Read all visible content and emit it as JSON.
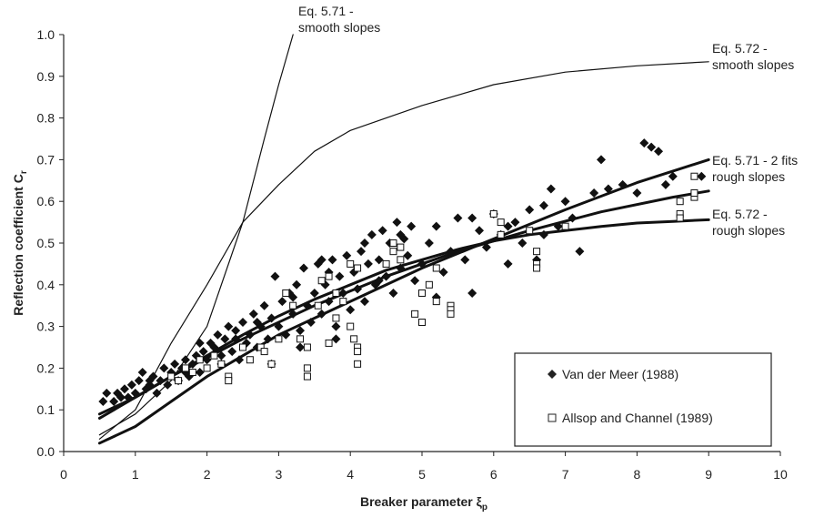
{
  "chart_data": {
    "type": "scatter",
    "xlabel": "Breaker parameter ξ",
    "xlabel_sub": "p",
    "ylabel": "Reflection coefficient C",
    "ylabel_sub": "r",
    "xlim": [
      0,
      10
    ],
    "ylim": [
      0,
      1.0
    ],
    "x_ticks": [
      "0",
      "1",
      "2",
      "3",
      "4",
      "5",
      "6",
      "7",
      "8",
      "9",
      "10"
    ],
    "y_ticks": [
      "0.0",
      "0.1",
      "0.2",
      "0.3",
      "0.4",
      "0.5",
      "0.6",
      "0.7",
      "0.8",
      "0.9",
      "1.0"
    ],
    "grid": false,
    "legend_position": "bottom-right",
    "legend": [
      {
        "name": "Van der Meer (1988)",
        "marker": "filled-diamond"
      },
      {
        "name": "Allsop and Channel (1989)",
        "marker": "open-square"
      }
    ],
    "annotations": [
      {
        "line1": "Eq. 5.71 -",
        "line2": "smooth slopes"
      },
      {
        "line1": "Eq. 5.72 -",
        "line2": "smooth slopes"
      },
      {
        "line1": "Eq. 5.71 - 2 fits",
        "line2": "rough slopes"
      },
      {
        "line1": "Eq. 5.72 -",
        "line2": "rough slopes"
      }
    ],
    "curves": [
      {
        "label": "Eq. 5.71 - smooth slopes",
        "style": "thin",
        "points": [
          [
            0.5,
            0.04
          ],
          [
            1.0,
            0.09
          ],
          [
            1.5,
            0.17
          ],
          [
            2.0,
            0.3
          ],
          [
            2.5,
            0.55
          ],
          [
            2.8,
            0.75
          ],
          [
            3.0,
            0.88
          ],
          [
            3.2,
            1.0
          ]
        ]
      },
      {
        "label": "Eq. 5.72 - smooth slopes",
        "style": "thin",
        "points": [
          [
            0.5,
            0.03
          ],
          [
            1.0,
            0.1
          ],
          [
            1.5,
            0.26
          ],
          [
            2.0,
            0.4
          ],
          [
            2.5,
            0.55
          ],
          [
            3.0,
            0.64
          ],
          [
            3.5,
            0.72
          ],
          [
            4.0,
            0.77
          ],
          [
            5.0,
            0.83
          ],
          [
            6.0,
            0.88
          ],
          [
            7.0,
            0.91
          ],
          [
            8.0,
            0.925
          ],
          [
            9.0,
            0.935
          ]
        ]
      },
      {
        "label": "Eq. 5.71 - rough slopes fit 1",
        "style": "thick",
        "points": [
          [
            0.5,
            0.08
          ],
          [
            1.5,
            0.18
          ],
          [
            2.5,
            0.27
          ],
          [
            3.5,
            0.35
          ],
          [
            4.5,
            0.42
          ],
          [
            5.5,
            0.48
          ],
          [
            6.5,
            0.53
          ],
          [
            7.5,
            0.575
          ],
          [
            8.5,
            0.61
          ],
          [
            9.0,
            0.625
          ]
        ]
      },
      {
        "label": "Eq. 5.71 - rough slopes fit 2",
        "style": "thick",
        "points": [
          [
            0.5,
            0.02
          ],
          [
            1.0,
            0.06
          ],
          [
            1.5,
            0.12
          ],
          [
            2.0,
            0.18
          ],
          [
            3.0,
            0.28
          ],
          [
            4.0,
            0.36
          ],
          [
            5.0,
            0.44
          ],
          [
            6.0,
            0.51
          ],
          [
            7.0,
            0.58
          ],
          [
            8.0,
            0.645
          ],
          [
            9.0,
            0.7
          ]
        ]
      },
      {
        "label": "Eq. 5.72 - rough slopes",
        "style": "thick",
        "points": [
          [
            0.5,
            0.09
          ],
          [
            1.0,
            0.13
          ],
          [
            1.5,
            0.18
          ],
          [
            2.0,
            0.23
          ],
          [
            2.5,
            0.28
          ],
          [
            3.0,
            0.325
          ],
          [
            3.5,
            0.365
          ],
          [
            4.0,
            0.4
          ],
          [
            4.5,
            0.435
          ],
          [
            5.0,
            0.46
          ],
          [
            5.5,
            0.485
          ],
          [
            6.0,
            0.505
          ],
          [
            6.5,
            0.52
          ],
          [
            7.0,
            0.53
          ],
          [
            7.5,
            0.54
          ],
          [
            8.0,
            0.548
          ],
          [
            8.5,
            0.552
          ],
          [
            9.0,
            0.556
          ]
        ]
      }
    ],
    "series": [
      {
        "name": "Van der Meer (1988)",
        "marker": "filled-diamond",
        "points": [
          [
            0.55,
            0.12
          ],
          [
            0.6,
            0.14
          ],
          [
            0.7,
            0.12
          ],
          [
            0.75,
            0.14
          ],
          [
            0.8,
            0.13
          ],
          [
            0.85,
            0.15
          ],
          [
            0.9,
            0.13
          ],
          [
            0.95,
            0.16
          ],
          [
            1.0,
            0.14
          ],
          [
            1.05,
            0.17
          ],
          [
            1.1,
            0.19
          ],
          [
            1.15,
            0.15
          ],
          [
            1.2,
            0.16
          ],
          [
            1.25,
            0.18
          ],
          [
            1.3,
            0.14
          ],
          [
            1.35,
            0.17
          ],
          [
            1.4,
            0.2
          ],
          [
            1.45,
            0.16
          ],
          [
            1.5,
            0.19
          ],
          [
            1.55,
            0.21
          ],
          [
            1.6,
            0.17
          ],
          [
            1.65,
            0.2
          ],
          [
            1.7,
            0.22
          ],
          [
            1.75,
            0.18
          ],
          [
            1.8,
            0.21
          ],
          [
            1.85,
            0.23
          ],
          [
            1.9,
            0.19
          ],
          [
            1.95,
            0.24
          ],
          [
            2.0,
            0.22
          ],
          [
            2.05,
            0.26
          ],
          [
            2.1,
            0.25
          ],
          [
            2.15,
            0.28
          ],
          [
            2.2,
            0.21
          ],
          [
            2.25,
            0.27
          ],
          [
            2.3,
            0.3
          ],
          [
            2.35,
            0.24
          ],
          [
            2.4,
            0.29
          ],
          [
            2.45,
            0.22
          ],
          [
            2.5,
            0.31
          ],
          [
            2.55,
            0.26
          ],
          [
            2.6,
            0.28
          ],
          [
            2.65,
            0.33
          ],
          [
            2.7,
            0.25
          ],
          [
            2.75,
            0.3
          ],
          [
            2.8,
            0.35
          ],
          [
            2.85,
            0.27
          ],
          [
            2.9,
            0.32
          ],
          [
            2.95,
            0.42
          ],
          [
            3.0,
            0.3
          ],
          [
            3.05,
            0.36
          ],
          [
            3.1,
            0.28
          ],
          [
            3.15,
            0.38
          ],
          [
            3.2,
            0.33
          ],
          [
            3.25,
            0.4
          ],
          [
            3.3,
            0.29
          ],
          [
            3.35,
            0.44
          ],
          [
            3.4,
            0.35
          ],
          [
            3.45,
            0.31
          ],
          [
            3.5,
            0.38
          ],
          [
            3.55,
            0.45
          ],
          [
            3.6,
            0.33
          ],
          [
            3.65,
            0.4
          ],
          [
            3.7,
            0.36
          ],
          [
            3.75,
            0.46
          ],
          [
            3.8,
            0.3
          ],
          [
            3.85,
            0.42
          ],
          [
            3.9,
            0.38
          ],
          [
            3.95,
            0.47
          ],
          [
            4.0,
            0.34
          ],
          [
            4.05,
            0.43
          ],
          [
            4.1,
            0.39
          ],
          [
            4.15,
            0.48
          ],
          [
            4.2,
            0.36
          ],
          [
            4.25,
            0.45
          ],
          [
            4.3,
            0.52
          ],
          [
            4.35,
            0.4
          ],
          [
            4.4,
            0.46
          ],
          [
            4.45,
            0.53
          ],
          [
            4.5,
            0.42
          ],
          [
            4.55,
            0.5
          ],
          [
            4.6,
            0.38
          ],
          [
            4.65,
            0.55
          ],
          [
            4.7,
            0.44
          ],
          [
            4.75,
            0.51
          ],
          [
            4.8,
            0.47
          ],
          [
            4.85,
            0.54
          ],
          [
            4.9,
            0.41
          ],
          [
            5.0,
            0.45
          ],
          [
            5.1,
            0.5
          ],
          [
            5.2,
            0.37
          ],
          [
            5.3,
            0.43
          ],
          [
            5.4,
            0.48
          ],
          [
            5.5,
            0.56
          ],
          [
            5.6,
            0.46
          ],
          [
            5.7,
            0.38
          ],
          [
            5.8,
            0.53
          ],
          [
            5.9,
            0.49
          ],
          [
            6.0,
            0.57
          ],
          [
            6.1,
            0.52
          ],
          [
            6.2,
            0.45
          ],
          [
            6.3,
            0.55
          ],
          [
            6.4,
            0.5
          ],
          [
            6.5,
            0.58
          ],
          [
            6.6,
            0.46
          ],
          [
            6.7,
            0.52
          ],
          [
            6.8,
            0.63
          ],
          [
            6.9,
            0.54
          ],
          [
            7.0,
            0.6
          ],
          [
            7.1,
            0.56
          ],
          [
            7.2,
            0.48
          ],
          [
            7.4,
            0.62
          ],
          [
            7.5,
            0.7
          ],
          [
            7.6,
            0.63
          ],
          [
            7.8,
            0.64
          ],
          [
            8.0,
            0.62
          ],
          [
            8.1,
            0.74
          ],
          [
            8.2,
            0.73
          ],
          [
            8.3,
            0.72
          ],
          [
            8.4,
            0.64
          ],
          [
            8.5,
            0.66
          ],
          [
            8.9,
            0.66
          ],
          [
            1.2,
            0.17
          ],
          [
            1.7,
            0.19
          ],
          [
            2.2,
            0.23
          ],
          [
            2.7,
            0.31
          ],
          [
            3.2,
            0.37
          ],
          [
            3.7,
            0.43
          ],
          [
            4.2,
            0.5
          ],
          [
            4.7,
            0.52
          ],
          [
            5.2,
            0.54
          ],
          [
            5.7,
            0.56
          ],
          [
            6.2,
            0.54
          ],
          [
            6.7,
            0.59
          ],
          [
            2.9,
            0.21
          ],
          [
            3.3,
            0.25
          ],
          [
            3.8,
            0.27
          ],
          [
            1.9,
            0.26
          ],
          [
            2.4,
            0.27
          ],
          [
            3.6,
            0.46
          ],
          [
            4.4,
            0.41
          ]
        ]
      },
      {
        "name": "Allsop and Channel (1989)",
        "marker": "open-square",
        "points": [
          [
            1.5,
            0.18
          ],
          [
            1.6,
            0.17
          ],
          [
            1.7,
            0.2
          ],
          [
            1.8,
            0.19
          ],
          [
            1.9,
            0.22
          ],
          [
            2.0,
            0.2
          ],
          [
            2.1,
            0.23
          ],
          [
            2.2,
            0.21
          ],
          [
            2.3,
            0.18
          ],
          [
            2.3,
            0.17
          ],
          [
            2.5,
            0.25
          ],
          [
            2.6,
            0.22
          ],
          [
            2.75,
            0.25
          ],
          [
            2.8,
            0.24
          ],
          [
            2.9,
            0.21
          ],
          [
            3.0,
            0.27
          ],
          [
            3.1,
            0.38
          ],
          [
            3.2,
            0.35
          ],
          [
            3.3,
            0.27
          ],
          [
            3.4,
            0.25
          ],
          [
            3.4,
            0.2
          ],
          [
            3.4,
            0.18
          ],
          [
            3.55,
            0.35
          ],
          [
            3.6,
            0.41
          ],
          [
            3.7,
            0.42
          ],
          [
            3.8,
            0.38
          ],
          [
            3.9,
            0.36
          ],
          [
            4.0,
            0.3
          ],
          [
            4.05,
            0.27
          ],
          [
            4.1,
            0.25
          ],
          [
            4.1,
            0.24
          ],
          [
            4.1,
            0.21
          ],
          [
            4.0,
            0.45
          ],
          [
            4.1,
            0.44
          ],
          [
            4.5,
            0.45
          ],
          [
            4.6,
            0.5
          ],
          [
            4.7,
            0.46
          ],
          [
            4.9,
            0.33
          ],
          [
            5.0,
            0.31
          ],
          [
            5.0,
            0.38
          ],
          [
            5.1,
            0.4
          ],
          [
            5.2,
            0.44
          ],
          [
            5.2,
            0.36
          ],
          [
            5.4,
            0.35
          ],
          [
            5.4,
            0.34
          ],
          [
            5.4,
            0.33
          ],
          [
            6.0,
            0.57
          ],
          [
            6.1,
            0.55
          ],
          [
            6.1,
            0.52
          ],
          [
            6.5,
            0.53
          ],
          [
            6.6,
            0.48
          ],
          [
            6.6,
            0.45
          ],
          [
            6.6,
            0.44
          ],
          [
            7.0,
            0.54
          ],
          [
            8.6,
            0.57
          ],
          [
            8.6,
            0.56
          ],
          [
            8.6,
            0.6
          ],
          [
            8.8,
            0.61
          ],
          [
            8.8,
            0.62
          ],
          [
            8.8,
            0.66
          ],
          [
            4.6,
            0.48
          ],
          [
            4.7,
            0.49
          ],
          [
            3.7,
            0.26
          ],
          [
            3.8,
            0.32
          ]
        ]
      }
    ]
  }
}
